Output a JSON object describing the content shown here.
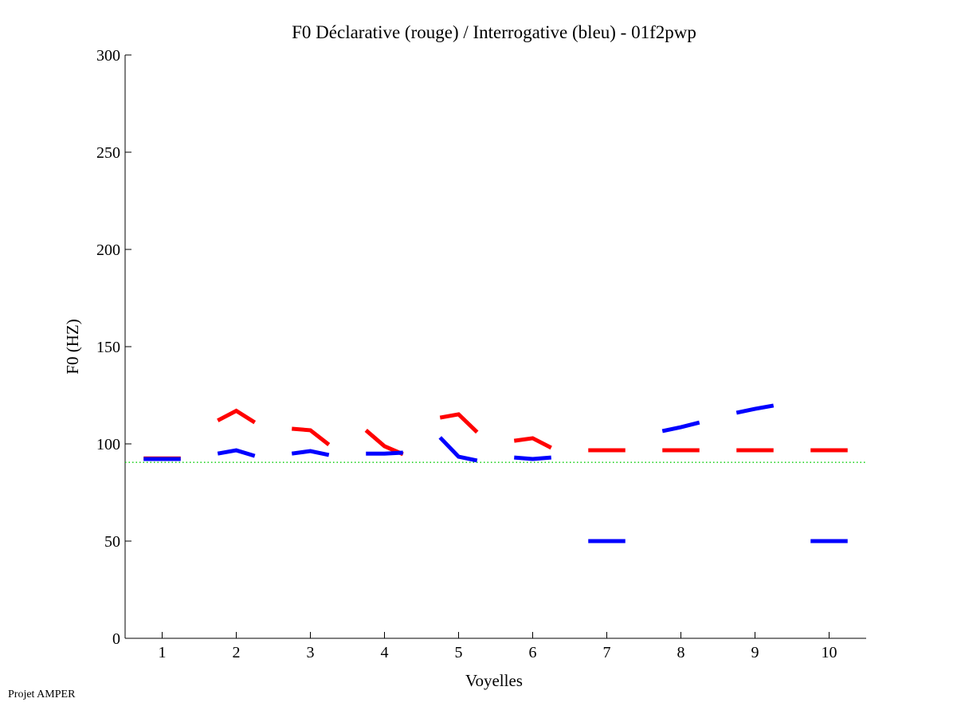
{
  "chart_data": {
    "type": "line",
    "title": "F0 Déclarative (rouge) / Interrogative (bleu) - 01f2pwp",
    "xlabel": "Voyelles",
    "ylabel": "F0 (HZ)",
    "xlim": [
      0.5,
      10.5
    ],
    "ylim": [
      0,
      300
    ],
    "xticks": [
      1,
      2,
      3,
      4,
      5,
      6,
      7,
      8,
      9,
      10
    ],
    "xtick_labels": [
      "1",
      "2",
      "3",
      "4",
      "5",
      "6",
      "7",
      "8",
      "9",
      "10"
    ],
    "yticks": [
      0,
      50,
      100,
      150,
      200,
      250,
      300
    ],
    "ytick_labels": [
      "0",
      "50",
      "100",
      "150",
      "200",
      "250",
      "300"
    ],
    "grid": false,
    "reference_line": {
      "value": 90.5,
      "color": "#00cc00",
      "style": "dotted"
    },
    "series": [
      {
        "name": "Déclarative",
        "color": "#ff0000",
        "segments": [
          [
            92.5,
            92.5,
            92.5
          ],
          [
            112,
            117,
            111
          ],
          [
            107.8,
            107,
            99.6
          ],
          [
            107,
            98.8,
            94.7
          ],
          [
            113.5,
            115.2,
            106
          ],
          [
            101.6,
            102.9,
            98
          ],
          [
            96.7,
            96.7,
            96.7
          ],
          [
            96.7,
            96.7,
            96.7
          ],
          [
            96.7,
            96.7,
            96.7
          ],
          [
            96.7,
            96.7,
            96.7
          ]
        ]
      },
      {
        "name": "Interrogative",
        "color": "#0000ff",
        "segments": [
          [
            92.2,
            92.2,
            92.2
          ],
          [
            95,
            96.7,
            93.8
          ],
          [
            95,
            96.3,
            94.3
          ],
          [
            95,
            95,
            95.5
          ],
          [
            103.3,
            93.4,
            91.4
          ],
          [
            93,
            92.2,
            93
          ],
          [
            50,
            50,
            50
          ],
          [
            106.6,
            108.6,
            111
          ],
          [
            116,
            118,
            119.7
          ],
          [
            50,
            50,
            50
          ]
        ]
      }
    ]
  },
  "footer": "Projet AMPER"
}
